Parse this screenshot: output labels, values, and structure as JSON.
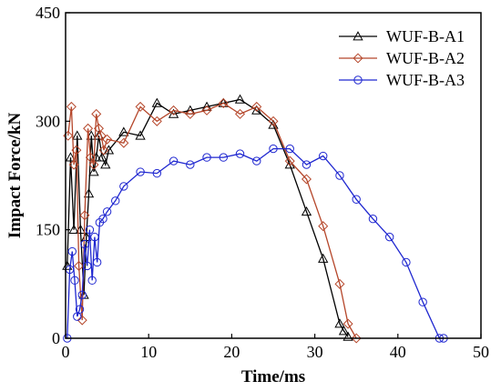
{
  "chart_data": {
    "type": "line",
    "title": "",
    "xlabel": "Time/ms",
    "ylabel": "Impact Force/kN",
    "xlim": [
      0,
      50
    ],
    "ylim": [
      0,
      450
    ],
    "x_ticks": [
      0,
      10,
      20,
      30,
      40,
      50
    ],
    "y_ticks": [
      0,
      150,
      300,
      450
    ],
    "x_tick_labels": [
      "0",
      "10",
      "20",
      "30",
      "40",
      "50"
    ],
    "y_tick_labels": [
      "0",
      "150",
      "300",
      "450"
    ],
    "grid": false,
    "legend_position": "top-right",
    "series": [
      {
        "name": "WUF-B-A1",
        "color": "#000000",
        "marker": "triangle",
        "x": [
          0.2,
          0.6,
          1.0,
          1.4,
          1.8,
          2.2,
          2.5,
          2.8,
          3.1,
          3.4,
          3.7,
          4.0,
          4.4,
          4.8,
          5.2,
          7.0,
          9.0,
          11.0,
          13.0,
          15.0,
          17.0,
          19.0,
          21.0,
          23.0,
          25.0,
          27.0,
          29.0,
          31.0,
          33.0,
          33.5,
          34.0
        ],
        "y": [
          100,
          250,
          150,
          280,
          150,
          60,
          140,
          200,
          280,
          230,
          250,
          280,
          250,
          240,
          260,
          285,
          280,
          325,
          310,
          315,
          320,
          325,
          330,
          315,
          295,
          240,
          175,
          110,
          20,
          10,
          2
        ]
      },
      {
        "name": "WUF-B-A2",
        "color": "#b5462a",
        "marker": "diamond",
        "x": [
          0.3,
          0.7,
          1.0,
          1.3,
          1.6,
          2.0,
          2.3,
          2.7,
          3.0,
          3.4,
          3.7,
          4.0,
          4.3,
          4.6,
          5.0,
          7.0,
          9.0,
          11.0,
          13.0,
          15.0,
          17.0,
          19.0,
          21.0,
          23.0,
          25.0,
          27.0,
          29.0,
          31.0,
          33.0,
          34.0,
          35.0
        ],
        "y": [
          280,
          320,
          240,
          260,
          100,
          25,
          170,
          290,
          250,
          240,
          310,
          290,
          280,
          260,
          275,
          270,
          320,
          300,
          315,
          310,
          315,
          325,
          310,
          320,
          300,
          245,
          220,
          155,
          75,
          20,
          0
        ]
      },
      {
        "name": "WUF-B-A3",
        "color": "#1f27d0",
        "marker": "circle",
        "x": [
          0.2,
          0.5,
          0.8,
          1.1,
          1.4,
          1.7,
          2.0,
          2.3,
          2.6,
          2.9,
          3.2,
          3.5,
          3.8,
          4.1,
          4.5,
          5.0,
          6.0,
          7.0,
          9.0,
          11.0,
          13.0,
          15.0,
          17.0,
          19.0,
          21.0,
          23.0,
          25.0,
          27.0,
          29.0,
          31.0,
          33.0,
          35.0,
          37.0,
          39.0,
          41.0,
          43.0,
          45.0,
          45.5
        ],
        "y": [
          0,
          95,
          120,
          80,
          30,
          40,
          60,
          130,
          100,
          150,
          80,
          140,
          105,
          160,
          165,
          175,
          190,
          210,
          230,
          228,
          245,
          240,
          250,
          250,
          255,
          245,
          262,
          262,
          240,
          252,
          225,
          192,
          165,
          140,
          105,
          50,
          0,
          0
        ]
      }
    ]
  }
}
